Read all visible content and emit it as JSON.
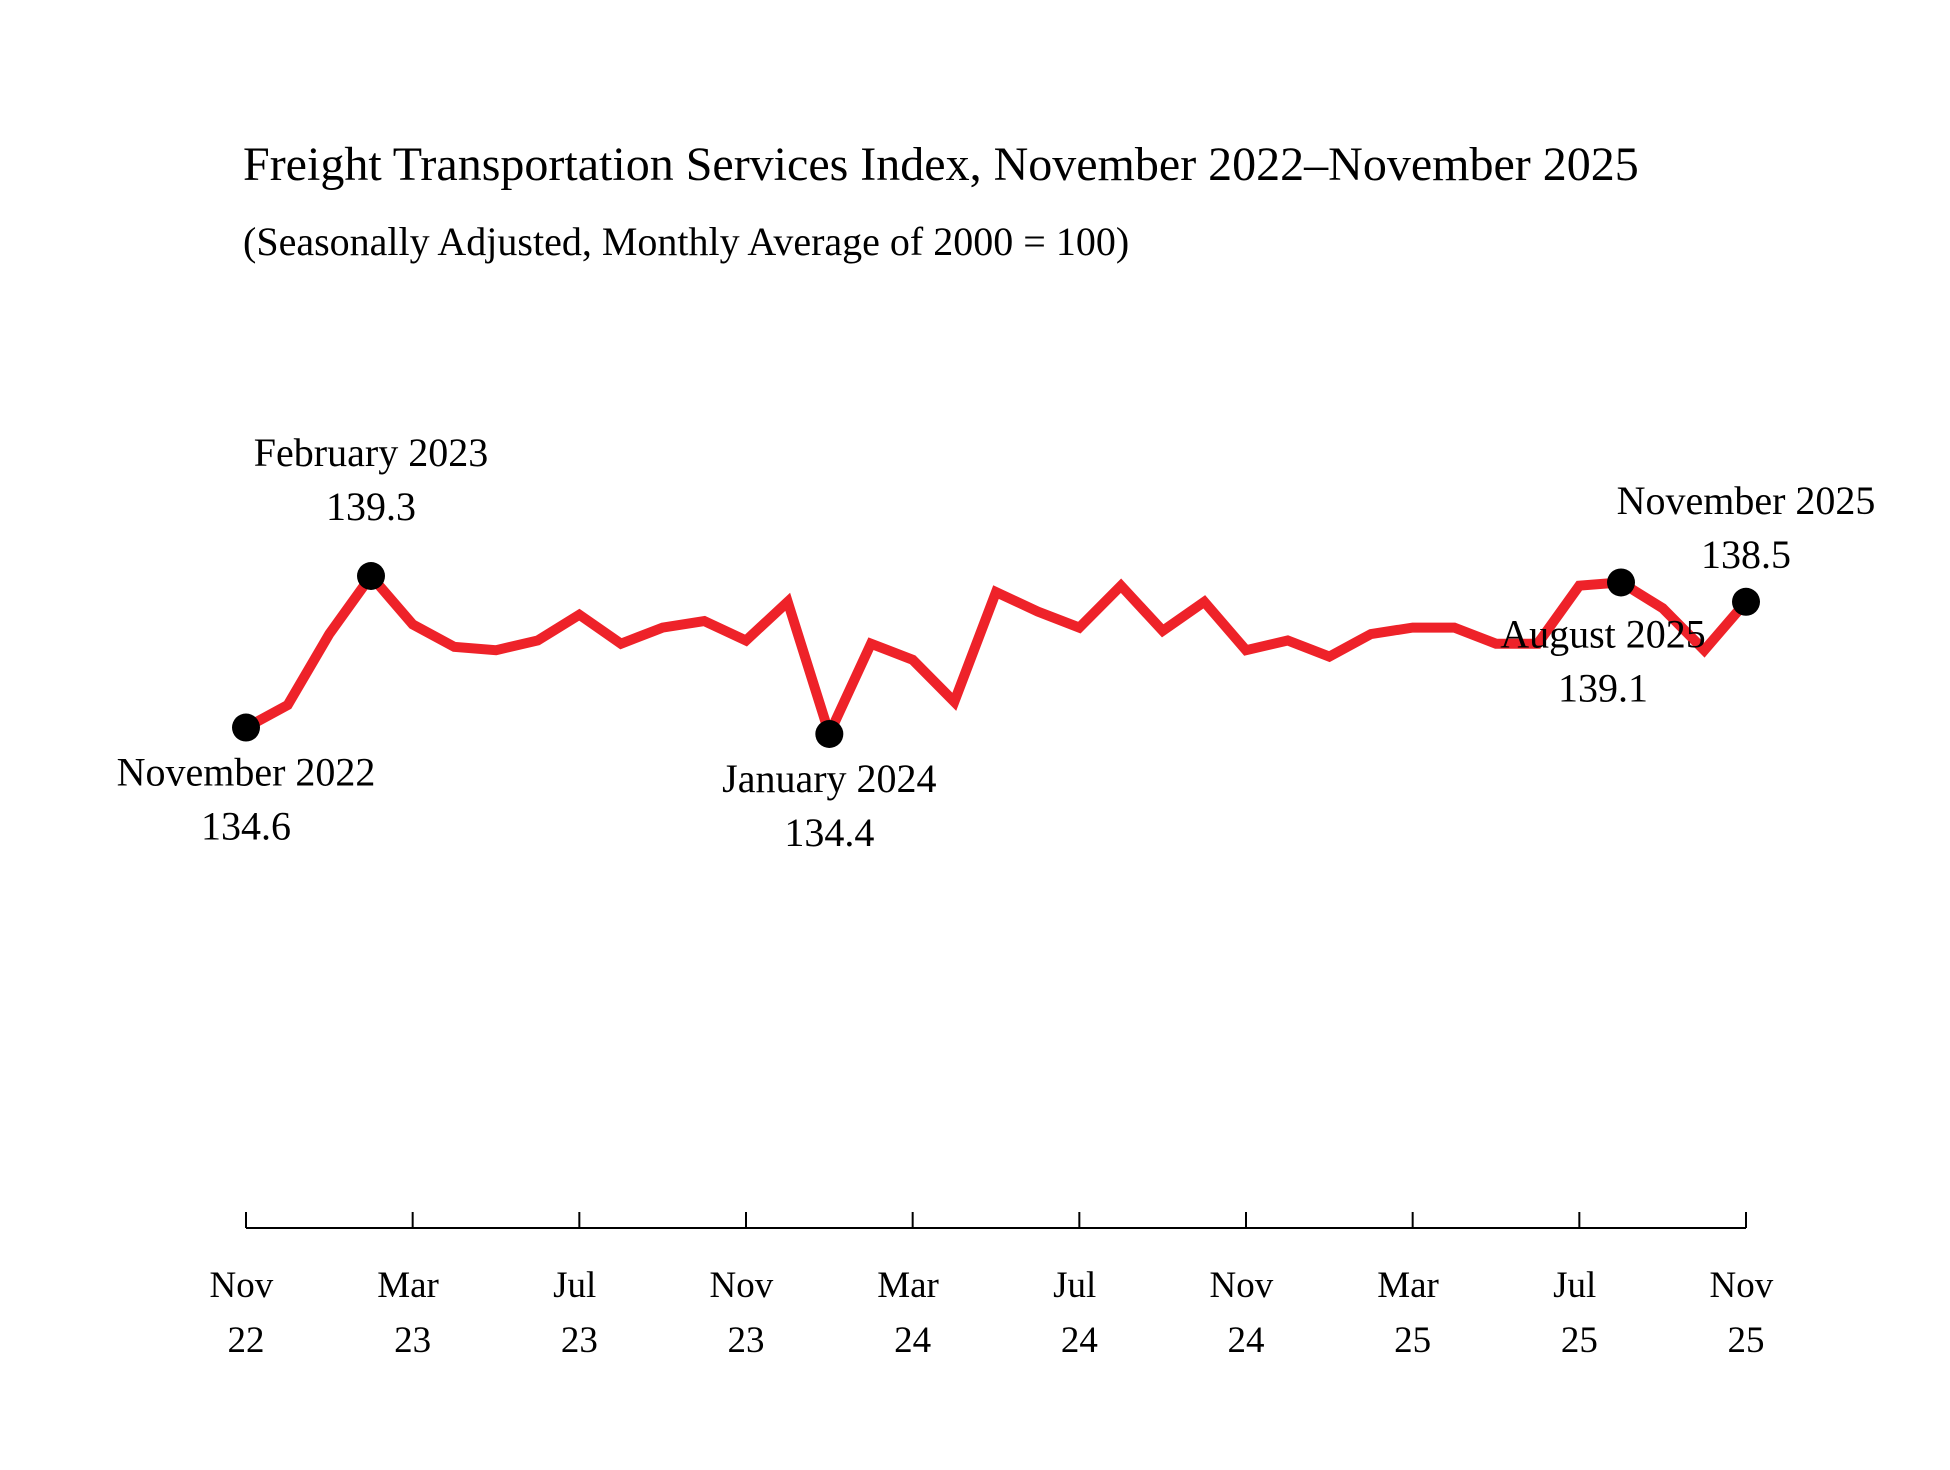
{
  "chart_data": {
    "type": "line",
    "title": "Freight Transportation Services Index, November 2022–November 2025",
    "subtitle": "(Seasonally Adjusted, Monthly Average of 2000 = 100)",
    "categories": [
      "Nov 22",
      null,
      null,
      null,
      "Mar 23",
      null,
      null,
      null,
      "Jul 23",
      null,
      null,
      null,
      "Nov 23",
      null,
      null,
      null,
      "Mar 24",
      null,
      null,
      null,
      "Jul 24",
      null,
      null,
      null,
      "Nov 24",
      null,
      null,
      null,
      "Mar 25",
      null,
      null,
      null,
      "Jul 25",
      null,
      null,
      null,
      "Nov 25"
    ],
    "values": [
      134.6,
      135.3,
      137.5,
      139.3,
      137.8,
      137.1,
      137.0,
      137.3,
      138.1,
      137.2,
      137.7,
      137.9,
      137.3,
      138.5,
      134.4,
      137.2,
      136.7,
      135.4,
      138.8,
      138.2,
      137.7,
      139.0,
      137.6,
      138.5,
      137.0,
      137.3,
      136.8,
      137.5,
      137.7,
      137.7,
      137.2,
      137.2,
      139.0,
      139.1,
      138.3,
      137.0,
      138.5
    ],
    "color": "#ee2229",
    "annotations": [
      {
        "text": "November 2022",
        "index": 0
      },
      {
        "text": "February 2023",
        "index": 3
      },
      {
        "text": "January 2024",
        "index": 14
      },
      {
        "text": "August 2025",
        "index": 33
      },
      {
        "text": "November 2025",
        "index": 36
      }
    ]
  }
}
